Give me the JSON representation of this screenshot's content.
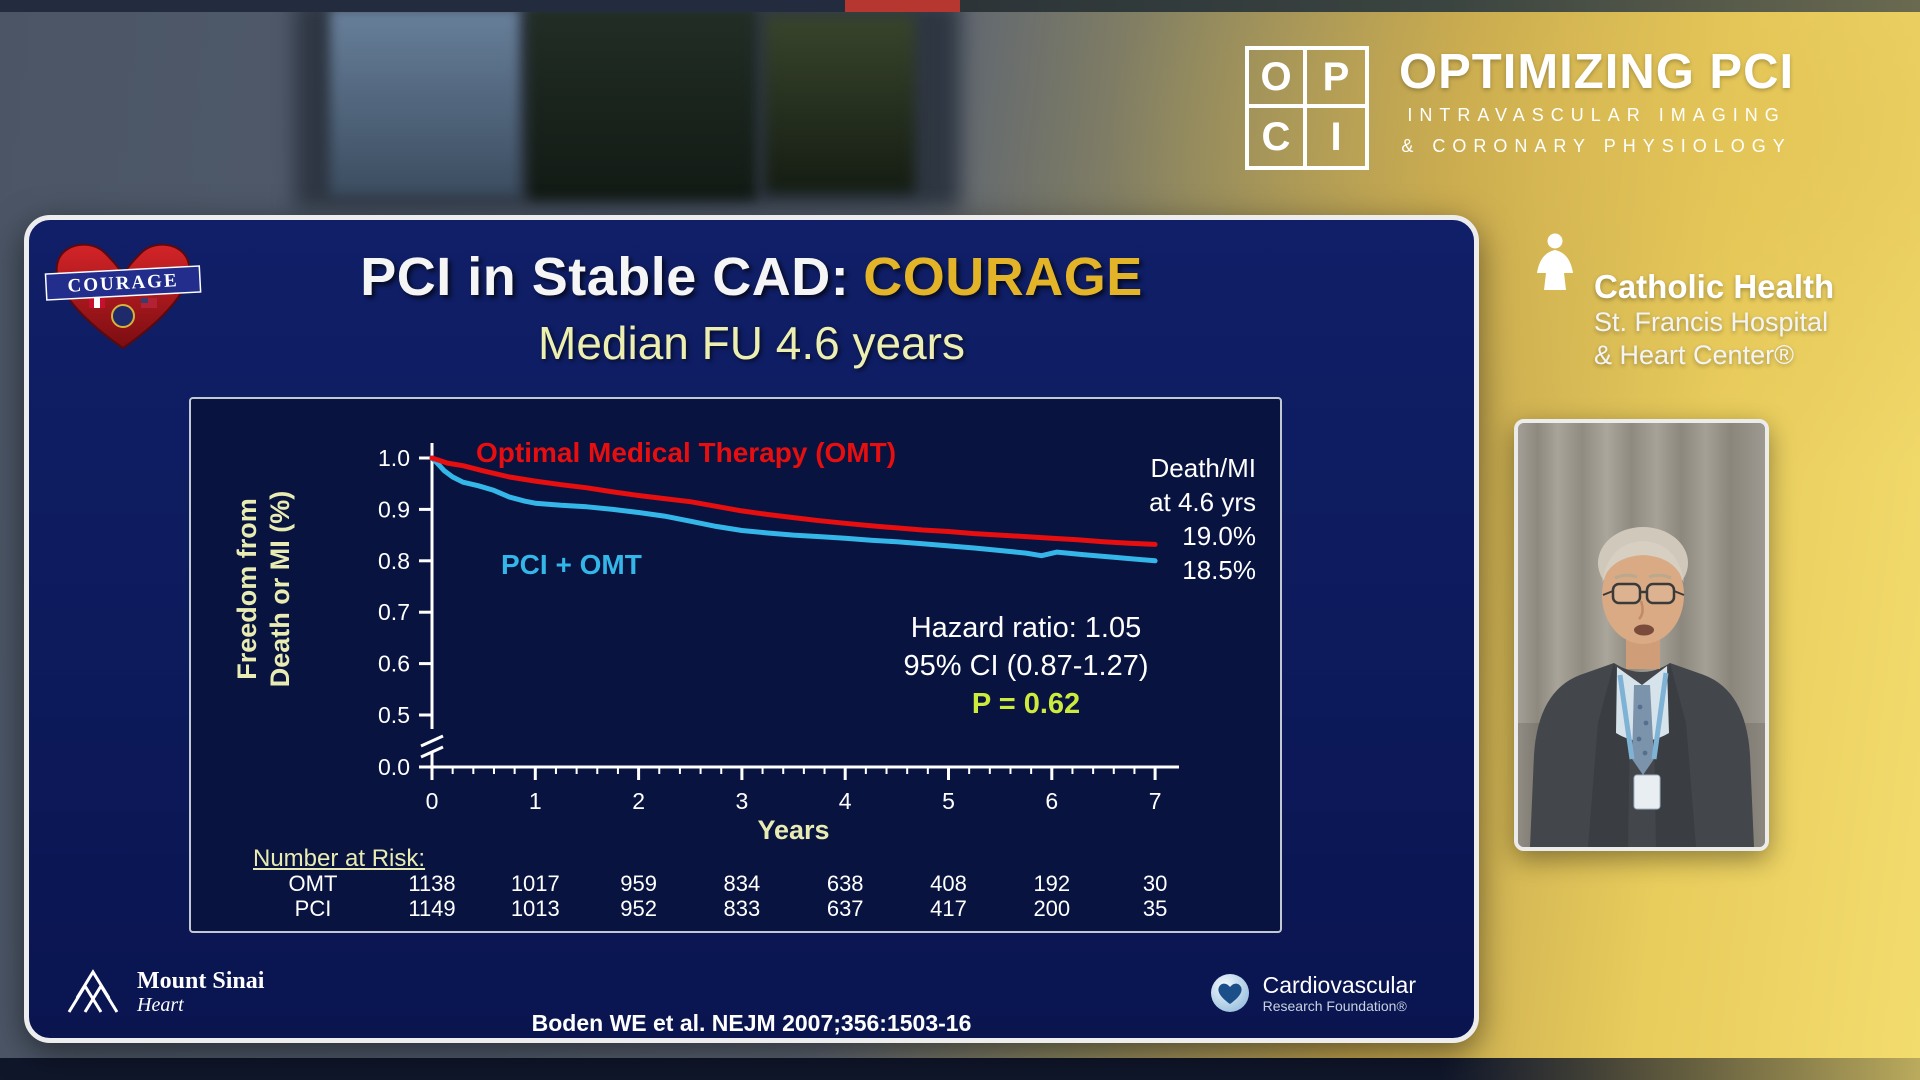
{
  "top": {
    "opci": {
      "letters": [
        "O",
        "P",
        "C",
        "I"
      ],
      "title": "OPTIMIZING PCI",
      "subtitle1": "INTRAVASCULAR IMAGING",
      "subtitle2": "& CORONARY PHYSIOLOGY"
    }
  },
  "sponsor": {
    "name": "Catholic Health",
    "line1": "St. Francis Hospital",
    "line2": "& Heart Center®"
  },
  "slide": {
    "logo_text": "COURAGE",
    "title_white": "PCI in Stable CAD:",
    "title_gold": "COURAGE",
    "subtitle": "Median FU 4.6 years",
    "citation": "Boden WE et al. NEJM 2007;356:1503-16",
    "footer": {
      "mount_sinai_name": "Mount Sinai",
      "mount_sinai_sub": "Heart",
      "crf_line1": "Cardiovascular",
      "crf_line2": "Research Foundation®"
    }
  },
  "colors": {
    "accent_gold": "#e3b428",
    "slide_bg": "#0c1a58",
    "p_value_green": "#cdeb3c",
    "omt_red": "#e60e0e",
    "pci_cyan": "#35b6e8",
    "axis_label_yellow": "#e9ecb2"
  },
  "chart_data": {
    "type": "line",
    "subtype": "kaplan-meier",
    "title": "PCI in Stable CAD: COURAGE — Median FU 4.6 years",
    "xlabel": "Years",
    "ylabel_line1": "Freedom from",
    "ylabel_line2": "Death or MI (%)",
    "x_ticks": [
      0,
      1,
      2,
      3,
      4,
      5,
      6,
      7
    ],
    "y_ticks": [
      1.0,
      0.9,
      0.8,
      0.7,
      0.6,
      0.5,
      0.0
    ],
    "y_axis_break": "between 0.5 and 0.0",
    "xlim": [
      0,
      7
    ],
    "grid": false,
    "series": [
      {
        "name": "OMT",
        "label": "Optimal Medical Therapy (OMT)",
        "color": "#e60e0e",
        "points": [
          [
            0,
            1.0
          ],
          [
            0.15,
            0.99
          ],
          [
            0.3,
            0.985
          ],
          [
            0.5,
            0.975
          ],
          [
            0.75,
            0.963
          ],
          [
            1,
            0.955
          ],
          [
            1.25,
            0.948
          ],
          [
            1.5,
            0.942
          ],
          [
            1.75,
            0.934
          ],
          [
            2,
            0.927
          ],
          [
            2.25,
            0.921
          ],
          [
            2.5,
            0.915
          ],
          [
            2.75,
            0.906
          ],
          [
            3,
            0.897
          ],
          [
            3.25,
            0.89
          ],
          [
            3.5,
            0.884
          ],
          [
            3.75,
            0.878
          ],
          [
            4,
            0.873
          ],
          [
            4.25,
            0.868
          ],
          [
            4.5,
            0.864
          ],
          [
            4.75,
            0.86
          ],
          [
            5,
            0.857
          ],
          [
            5.25,
            0.853
          ],
          [
            5.5,
            0.85
          ],
          [
            5.75,
            0.847
          ],
          [
            6,
            0.844
          ],
          [
            6.25,
            0.841
          ],
          [
            6.5,
            0.837
          ],
          [
            6.75,
            0.834
          ],
          [
            7,
            0.832
          ]
        ]
      },
      {
        "name": "PCI",
        "label": "PCI + OMT",
        "color": "#35b6e8",
        "points": [
          [
            0,
            1.0
          ],
          [
            0.05,
            0.99
          ],
          [
            0.12,
            0.975
          ],
          [
            0.2,
            0.963
          ],
          [
            0.3,
            0.953
          ],
          [
            0.45,
            0.946
          ],
          [
            0.6,
            0.937
          ],
          [
            0.75,
            0.924
          ],
          [
            0.9,
            0.916
          ],
          [
            1,
            0.912
          ],
          [
            1.25,
            0.908
          ],
          [
            1.5,
            0.905
          ],
          [
            1.75,
            0.9
          ],
          [
            2,
            0.894
          ],
          [
            2.25,
            0.887
          ],
          [
            2.5,
            0.877
          ],
          [
            2.75,
            0.867
          ],
          [
            3,
            0.859
          ],
          [
            3.25,
            0.854
          ],
          [
            3.5,
            0.85
          ],
          [
            3.75,
            0.847
          ],
          [
            4,
            0.844
          ],
          [
            4.25,
            0.84
          ],
          [
            4.5,
            0.837
          ],
          [
            4.75,
            0.833
          ],
          [
            5,
            0.829
          ],
          [
            5.25,
            0.825
          ],
          [
            5.5,
            0.82
          ],
          [
            5.75,
            0.815
          ],
          [
            5.9,
            0.81
          ],
          [
            6.05,
            0.817
          ],
          [
            6.3,
            0.812
          ],
          [
            6.6,
            0.807
          ],
          [
            7,
            0.8
          ]
        ]
      }
    ],
    "annotations": {
      "endpoint_line1": "Death/MI",
      "endpoint_line2": "at 4.6 yrs",
      "endpoint_value1": "19.0%",
      "endpoint_value2": "18.5%",
      "hazard_ratio": "Hazard ratio: 1.05",
      "confidence_interval": "95% CI (0.87-1.27)",
      "p_value": "P = 0.62"
    },
    "number_at_risk": {
      "label": "Number at Risk:",
      "rows": [
        {
          "name": "OMT",
          "values": [
            1138,
            1017,
            959,
            834,
            638,
            408,
            192,
            30
          ]
        },
        {
          "name": "PCI",
          "values": [
            1149,
            1013,
            952,
            833,
            637,
            417,
            200,
            35
          ]
        }
      ]
    }
  }
}
